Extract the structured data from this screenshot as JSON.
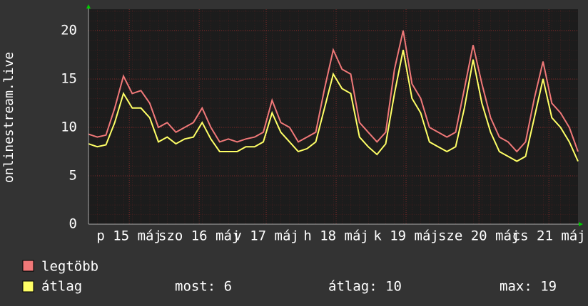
{
  "chart_data": {
    "type": "line",
    "y_label": "onlinestream.live",
    "x": [
      0,
      3,
      6,
      9,
      12,
      15,
      18,
      21,
      24,
      27,
      30,
      33,
      36,
      39,
      42,
      45,
      48,
      51,
      54,
      57,
      60,
      63,
      66,
      69,
      72,
      75,
      78,
      81,
      84,
      87,
      90,
      93,
      96,
      99,
      102,
      105,
      108,
      111,
      114,
      117,
      120,
      123,
      126,
      129,
      132,
      135,
      138,
      141,
      144,
      147,
      150,
      153,
      156,
      159,
      162,
      165,
      168
    ],
    "xlim": [
      0,
      168
    ],
    "xticks": [
      {
        "value": 14,
        "label": "p 15 máj"
      },
      {
        "value": 38,
        "label": "szo 16 máj"
      },
      {
        "value": 61,
        "label": "v 17 máj"
      },
      {
        "value": 85,
        "label": "h 18 máj"
      },
      {
        "value": 109,
        "label": "k 19 máj"
      },
      {
        "value": 134,
        "label": "sze 20 máj"
      },
      {
        "value": 158,
        "label": "cs 21 máj"
      }
    ],
    "ylim": [
      0,
      22.2
    ],
    "yticks": [
      0,
      5,
      10,
      15,
      20
    ],
    "grid": true,
    "series": [
      {
        "name": "legtöbb",
        "color": "#f07878",
        "values": [
          9.3,
          9,
          9.2,
          12,
          15.3,
          13.5,
          13.8,
          12.5,
          10,
          10.5,
          9.5,
          10,
          10.5,
          12,
          10,
          8.5,
          8.8,
          8.5,
          8.8,
          9,
          9.5,
          12.8,
          10.5,
          10,
          8.5,
          9,
          9.5,
          14,
          18,
          16,
          15.5,
          10.5,
          9.5,
          8.5,
          9.5,
          16,
          20,
          14.5,
          13,
          10,
          9.5,
          9,
          9.5,
          14,
          18.5,
          14.5,
          11,
          9,
          8.5,
          7.5,
          8.5,
          13,
          16.8,
          12.5,
          11.5,
          10,
          7.5
        ]
      },
      {
        "name": "átlag",
        "color": "#ffff66",
        "values": [
          8.3,
          8,
          8.2,
          10.5,
          13.5,
          12,
          12,
          11,
          8.5,
          9,
          8.3,
          8.8,
          9,
          10.5,
          8.8,
          7.5,
          7.5,
          7.5,
          8,
          8,
          8.5,
          11.5,
          9.5,
          8.5,
          7.5,
          7.8,
          8.5,
          12,
          15.5,
          14,
          13.5,
          9,
          8,
          7.2,
          8.3,
          13.5,
          18,
          13,
          11.5,
          8.5,
          8,
          7.5,
          8,
          12,
          17,
          12.5,
          9.5,
          7.5,
          7,
          6.5,
          7,
          11,
          15,
          11,
          10,
          8.5,
          6.5
        ]
      }
    ],
    "stats": [
      "most: 6",
      "átlag: 10",
      "max: 19"
    ]
  }
}
